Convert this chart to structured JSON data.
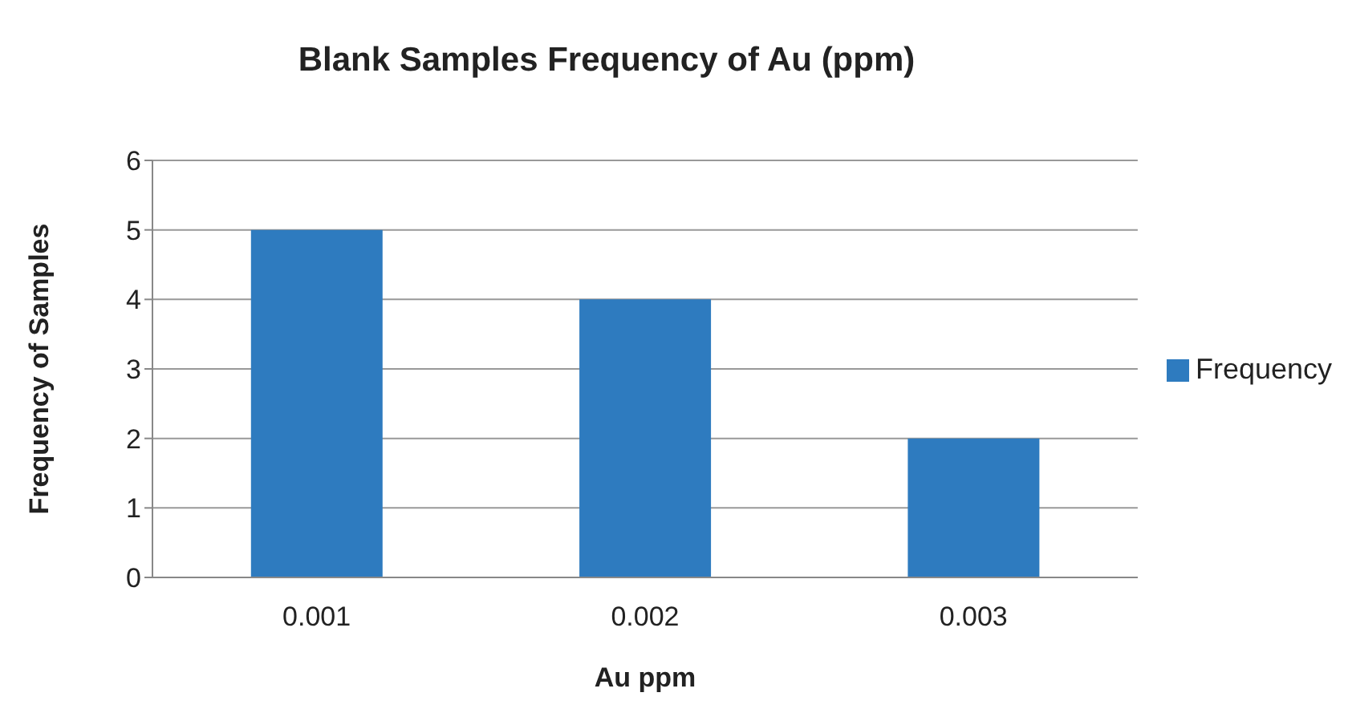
{
  "chart_data": {
    "type": "bar",
    "title": "Blank Samples Frequency of Au (ppm)",
    "xlabel": "Au ppm",
    "ylabel": "Frequency of Samples",
    "categories": [
      "0.001",
      "0.002",
      "0.003"
    ],
    "series": [
      {
        "name": "Frequency",
        "color": "#2e7bbf",
        "values": [
          5,
          4,
          2
        ]
      }
    ],
    "ylim": [
      0,
      6
    ],
    "yticks": [
      0,
      1,
      2,
      3,
      4,
      5,
      6
    ],
    "grid": "y",
    "legend": "right"
  }
}
